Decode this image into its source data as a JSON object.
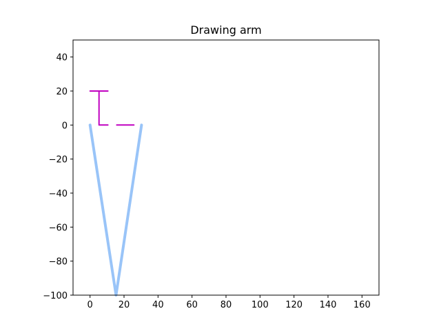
{
  "chart_data": {
    "type": "line",
    "title": "Drawing arm",
    "xlabel": "",
    "ylabel": "",
    "xlim": [
      -10,
      170
    ],
    "ylim": [
      -100,
      50
    ],
    "xticks": [
      0,
      20,
      40,
      60,
      80,
      100,
      120,
      140,
      160
    ],
    "yticks": [
      -100,
      -80,
      -60,
      -40,
      -20,
      0,
      20,
      40
    ],
    "xtick_labels": [
      "0",
      "20",
      "40",
      "60",
      "80",
      "100",
      "120",
      "140",
      "160"
    ],
    "ytick_labels": [
      "−100",
      "−80",
      "−60",
      "−40",
      "−20",
      "0",
      "20",
      "40"
    ],
    "grid": false,
    "series": [
      {
        "color": "#99c4f8",
        "style": "thick",
        "x": [
          0,
          15.3,
          30.3
        ],
        "y": [
          0,
          -100,
          0
        ]
      },
      {
        "color": "#c000c0",
        "style": "thin",
        "x": [
          0,
          10.5
        ],
        "y": [
          20,
          20
        ]
      },
      {
        "color": "#c000c0",
        "style": "thin",
        "x": [
          5.3,
          5.3,
          10.5
        ],
        "y": [
          20,
          0,
          0
        ]
      },
      {
        "color": "#c000c0",
        "style": "thin",
        "x": [
          15.7,
          25.8
        ],
        "y": [
          0,
          0
        ]
      }
    ]
  }
}
